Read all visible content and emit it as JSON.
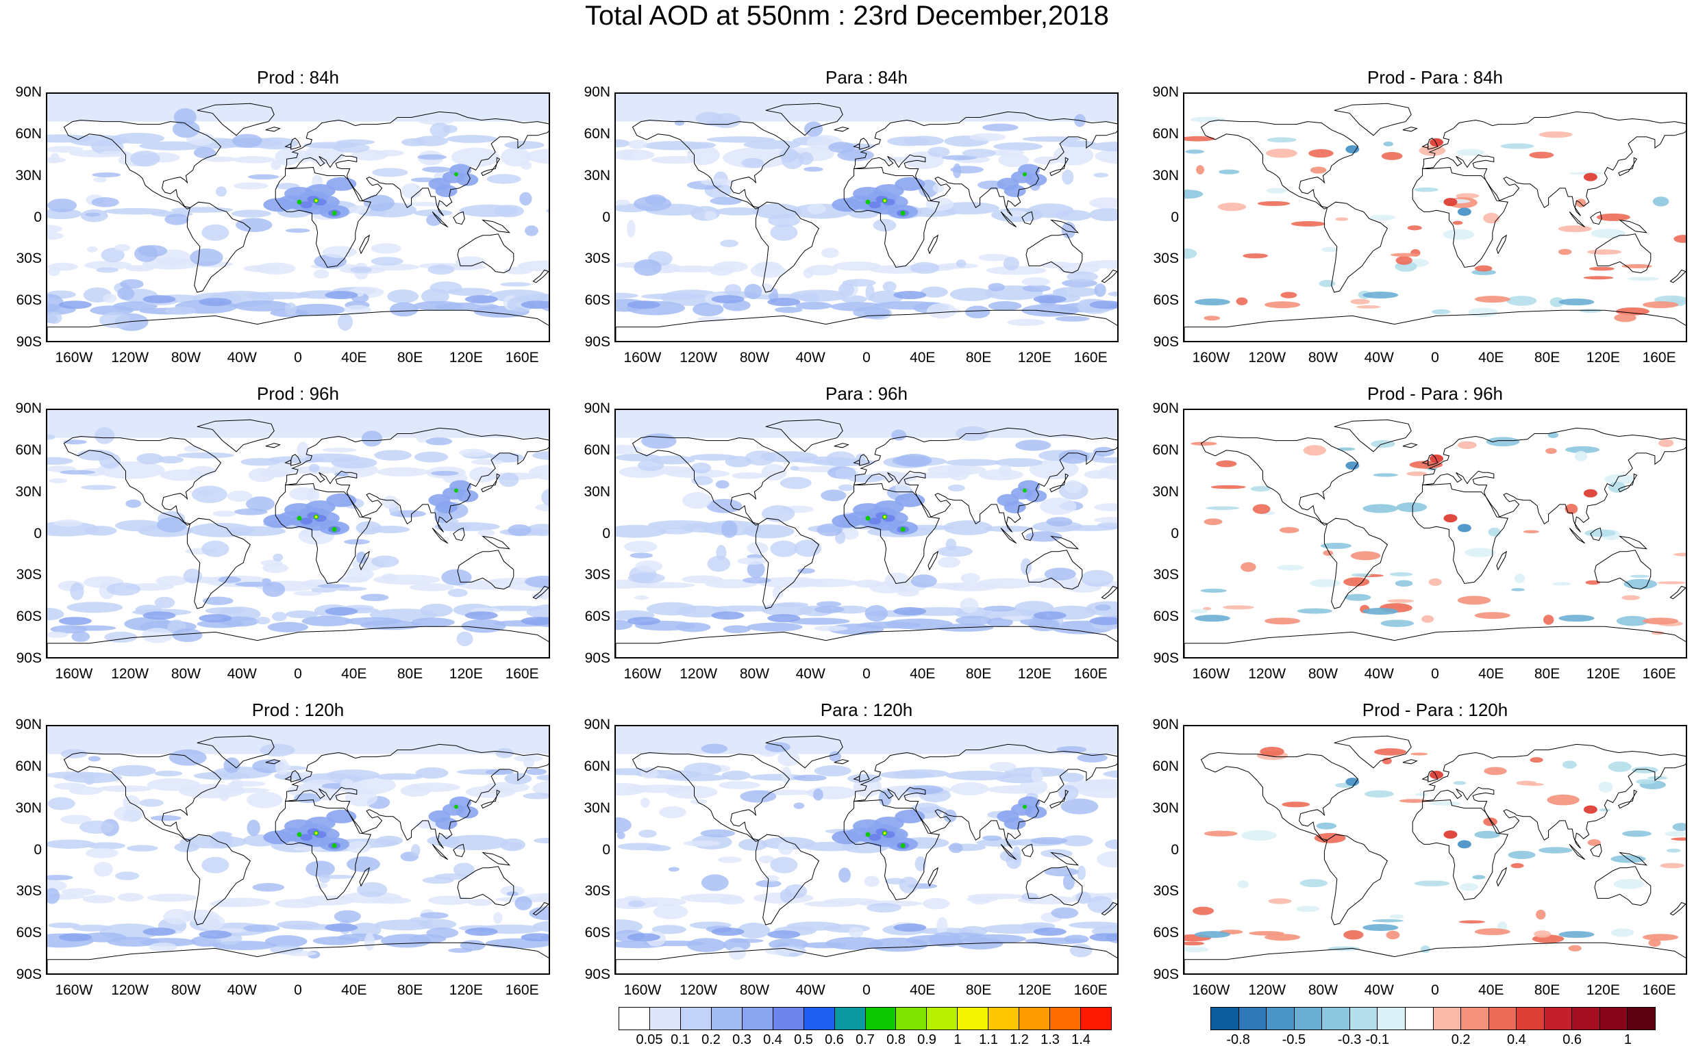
{
  "title": "Total AOD at 550nm : 23rd December,2018",
  "panels": [
    {
      "title": "Prod : 84h",
      "kind": "aod"
    },
    {
      "title": "Para : 84h",
      "kind": "aod"
    },
    {
      "title": "Prod - Para : 84h",
      "kind": "diff"
    },
    {
      "title": "Prod : 96h",
      "kind": "aod"
    },
    {
      "title": "Para : 96h",
      "kind": "aod"
    },
    {
      "title": "Prod - Para : 96h",
      "kind": "diff"
    },
    {
      "title": "Prod : 120h",
      "kind": "aod"
    },
    {
      "title": "Para : 120h",
      "kind": "aod"
    },
    {
      "title": "Prod - Para : 120h",
      "kind": "diff"
    }
  ],
  "lat_ticks": [
    "90N",
    "60N",
    "30N",
    "0",
    "30S",
    "60S",
    "90S"
  ],
  "lon_ticks": [
    "160W",
    "120W",
    "80W",
    "40W",
    "0",
    "40E",
    "80E",
    "120E",
    "160E"
  ],
  "aod_colorbar": {
    "colors": [
      "#ffffff",
      "#dde6fb",
      "#c2d2f8",
      "#a4bcf4",
      "#8aa5f0",
      "#6c84ec",
      "#1f5ef0",
      "#0a9aa0",
      "#0cc800",
      "#7ee400",
      "#b8f000",
      "#f5f500",
      "#fdc600",
      "#fd9c00",
      "#fd6d00",
      "#fd1a00"
    ],
    "labels": [
      "0.05",
      "0.1",
      "0.2",
      "0.3",
      "0.4",
      "0.5",
      "0.6",
      "0.7",
      "0.8",
      "0.9",
      "1",
      "1.1",
      "1.2",
      "1.3",
      "1.4"
    ]
  },
  "diff_colorbar": {
    "colors": [
      "#0d5c9e",
      "#2f79b8",
      "#4a93c7",
      "#6aaed4",
      "#8dc7df",
      "#b4deeb",
      "#dcf1f7",
      "#ffffff",
      "#fbb9a8",
      "#f5927c",
      "#ec6b56",
      "#dd3f35",
      "#c4202b",
      "#a40d20",
      "#850417",
      "#5c0010"
    ],
    "labels": [
      "-0.8",
      "-0.5",
      "-0.3",
      "-0.1",
      "0.2",
      "0.4",
      "0.6",
      "1"
    ]
  }
}
